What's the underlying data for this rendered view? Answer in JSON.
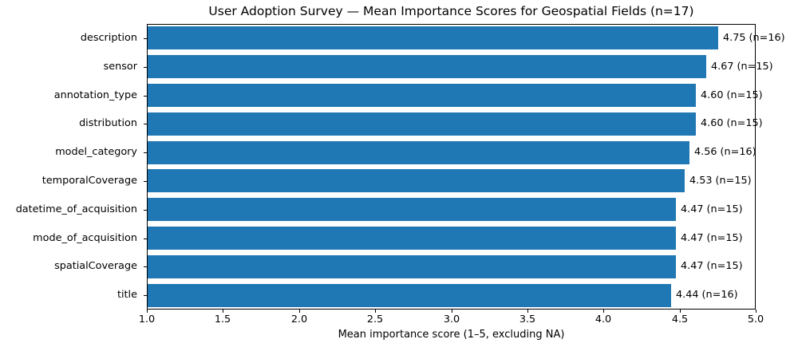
{
  "chart_data": {
    "type": "bar",
    "orientation": "horizontal",
    "title": "User Adoption Survey — Mean Importance Scores for Geospatial Fields (n=17)",
    "xlabel": "Mean importance score (1–5, excluding NA)",
    "categories": [
      "description",
      "sensor",
      "annotation_type",
      "distribution",
      "model_category",
      "temporalCoverage",
      "datetime_of_acquisition",
      "mode_of_acquisition",
      "spatialCoverage",
      "title"
    ],
    "values": [
      4.75,
      4.67,
      4.6,
      4.6,
      4.56,
      4.53,
      4.47,
      4.47,
      4.47,
      4.44
    ],
    "bar_labels": [
      "4.75 (n=16)",
      "4.67 (n=15)",
      "4.60 (n=15)",
      "4.60 (n=15)",
      "4.56 (n=16)",
      "4.53 (n=15)",
      "4.47 (n=15)",
      "4.47 (n=15)",
      "4.47 (n=15)",
      "4.44 (n=16)"
    ],
    "sample_sizes": [
      16,
      15,
      15,
      15,
      16,
      15,
      15,
      15,
      15,
      16
    ],
    "xlim": [
      1.0,
      5.0
    ],
    "xticks": [
      "1.0",
      "1.5",
      "2.0",
      "2.5",
      "3.0",
      "3.5",
      "4.0",
      "4.5",
      "5.0"
    ],
    "bar_color": "#1f77b4",
    "axis_color": "#000000",
    "grid": false,
    "legend": null
  }
}
